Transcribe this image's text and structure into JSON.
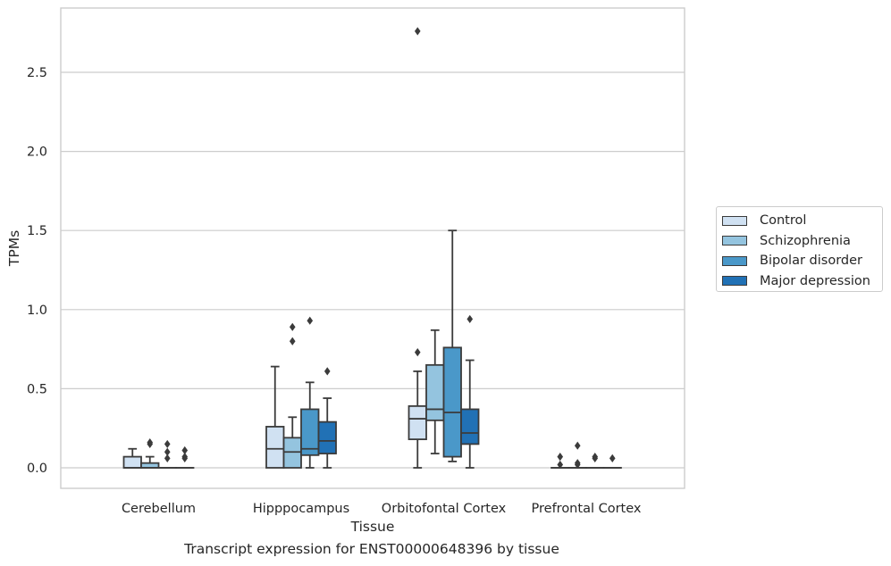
{
  "chart_data": {
    "type": "boxplot",
    "xlabel": "Tissue",
    "ylabel": "TPMs",
    "ylim": [
      -0.13,
      2.92
    ],
    "yticks": [
      0.0,
      0.5,
      1.0,
      1.5,
      2.0,
      2.5
    ],
    "ytick_labels": [
      "0.0",
      "0.5",
      "1.0",
      "1.5",
      "2.0",
      "2.5"
    ],
    "grid": "horizontal",
    "legend_position": "right",
    "categories": [
      "Cerebellum",
      "Hipppocampus",
      "Orbitofontal Cortex",
      "Prefrontal Cortex"
    ],
    "series": [
      {
        "name": "Control",
        "color": "#d0e1f2",
        "boxes": [
          {
            "min": 0.0,
            "q1": 0.0,
            "median": 0.0,
            "q3": 0.07,
            "max": 0.12,
            "outliers": []
          },
          {
            "min": 0.0,
            "q1": 0.0,
            "median": 0.12,
            "q3": 0.26,
            "max": 0.64,
            "outliers": []
          },
          {
            "min": 0.0,
            "q1": 0.18,
            "median": 0.31,
            "q3": 0.39,
            "max": 0.61,
            "outliers": [
              0.73,
              2.76
            ]
          },
          {
            "min": 0.0,
            "q1": 0.0,
            "median": 0.0,
            "q3": 0.0,
            "max": 0.0,
            "outliers": [
              0.02,
              0.07
            ]
          }
        ]
      },
      {
        "name": "Schizophrenia",
        "color": "#94c4df",
        "boxes": [
          {
            "min": 0.0,
            "q1": 0.0,
            "median": 0.0,
            "q3": 0.03,
            "max": 0.07,
            "outliers": [
              0.15,
              0.16
            ]
          },
          {
            "min": 0.0,
            "q1": 0.0,
            "median": 0.1,
            "q3": 0.19,
            "max": 0.32,
            "outliers": [
              0.8,
              0.89
            ]
          },
          {
            "min": 0.09,
            "q1": 0.3,
            "median": 0.37,
            "q3": 0.65,
            "max": 0.87,
            "outliers": []
          },
          {
            "min": 0.0,
            "q1": 0.0,
            "median": 0.0,
            "q3": 0.0,
            "max": 0.0,
            "outliers": [
              0.02,
              0.03,
              0.14
            ]
          }
        ]
      },
      {
        "name": "Bipolar disorder",
        "color": "#4a98c9",
        "boxes": [
          {
            "min": 0.0,
            "q1": 0.0,
            "median": 0.0,
            "q3": 0.0,
            "max": 0.0,
            "outliers": [
              0.06,
              0.1,
              0.15
            ]
          },
          {
            "min": 0.0,
            "q1": 0.08,
            "median": 0.12,
            "q3": 0.37,
            "max": 0.54,
            "outliers": [
              0.93
            ]
          },
          {
            "min": 0.04,
            "q1": 0.07,
            "median": 0.35,
            "q3": 0.76,
            "max": 1.5,
            "outliers": []
          },
          {
            "min": 0.0,
            "q1": 0.0,
            "median": 0.0,
            "q3": 0.0,
            "max": 0.0,
            "outliers": [
              0.06,
              0.07
            ]
          }
        ]
      },
      {
        "name": "Major depression",
        "color": "#2171b5",
        "boxes": [
          {
            "min": 0.0,
            "q1": 0.0,
            "median": 0.0,
            "q3": 0.0,
            "max": 0.0,
            "outliers": [
              0.06,
              0.07,
              0.11
            ]
          },
          {
            "min": 0.0,
            "q1": 0.09,
            "median": 0.17,
            "q3": 0.29,
            "max": 0.44,
            "outliers": [
              0.61
            ]
          },
          {
            "min": 0.0,
            "q1": 0.15,
            "median": 0.22,
            "q3": 0.37,
            "max": 0.68,
            "outliers": [
              0.94
            ]
          },
          {
            "min": 0.0,
            "q1": 0.0,
            "median": 0.0,
            "q3": 0.0,
            "max": 0.0,
            "outliers": [
              0.06
            ]
          }
        ]
      }
    ]
  },
  "caption": "Transcript expression for ENST00000648396 by tissue"
}
